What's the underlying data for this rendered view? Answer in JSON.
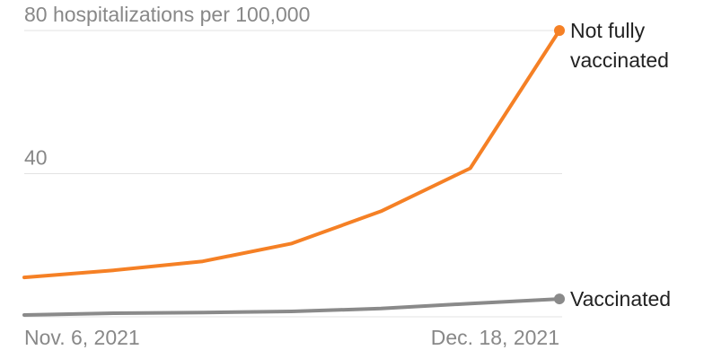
{
  "chart_data": {
    "type": "line",
    "title": "",
    "xlabel": "",
    "ylabel": "",
    "y_unit_label": "80 hospitalizations per 100,000",
    "ylim": [
      0,
      80
    ],
    "y_ticks": [
      {
        "value": 40,
        "label": "40"
      },
      {
        "value": 80,
        "label": "80 hospitalizations per 100,000"
      }
    ],
    "x_tick_labels": [
      "Nov. 6, 2021",
      "Dec. 18, 2021"
    ],
    "x_dates": [
      "2021-11-06",
      "2021-11-13",
      "2021-11-20",
      "2021-11-27",
      "2021-12-04",
      "2021-12-11",
      "2021-12-18"
    ],
    "grid": true,
    "series": [
      {
        "name": "Not fully vaccinated",
        "label_lines": [
          "Not fully",
          "vaccinated"
        ],
        "color": "#f58025",
        "values": [
          11,
          13,
          15.5,
          20.5,
          29.5,
          41.5,
          80
        ]
      },
      {
        "name": "Vaccinated",
        "label_lines": [
          "Vaccinated"
        ],
        "color": "#8a8a8a",
        "values": [
          0.5,
          1,
          1.2,
          1.5,
          2.3,
          3.7,
          5
        ]
      }
    ]
  }
}
